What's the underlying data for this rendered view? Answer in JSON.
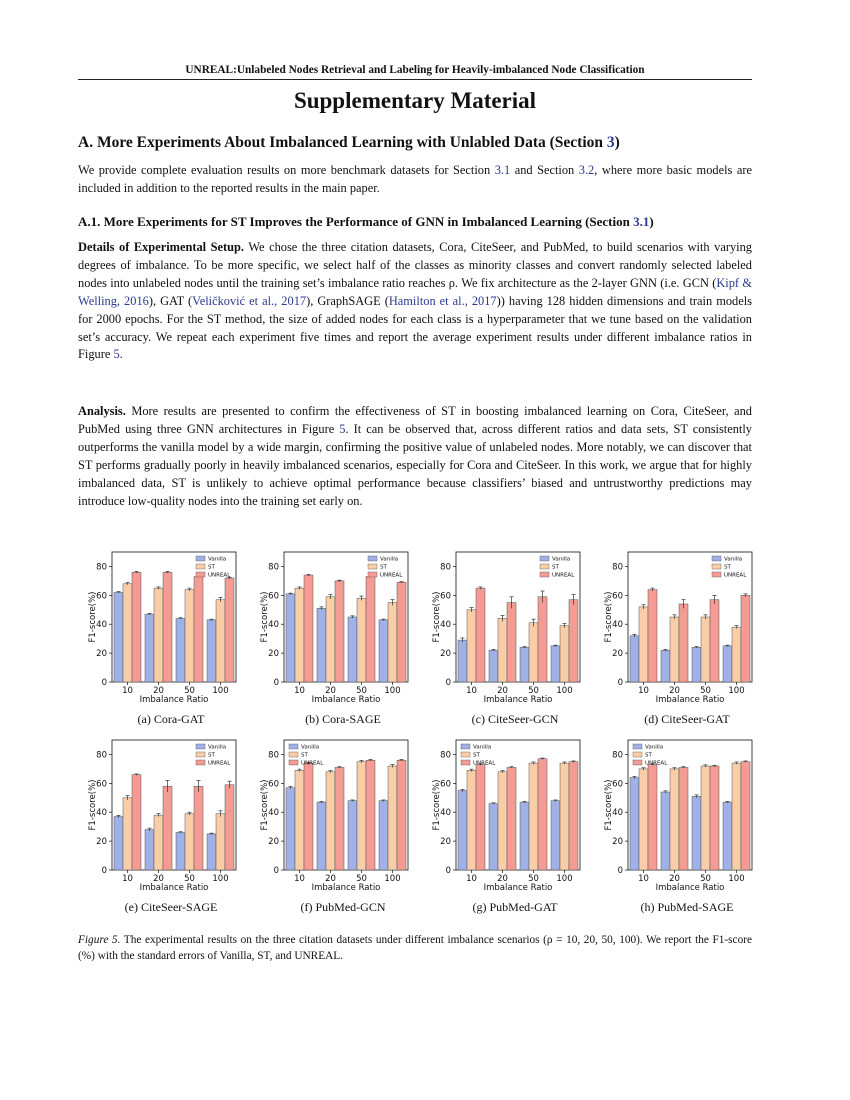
{
  "header": {
    "running_title": "UNREAL:Unlabeled Nodes Retrieval and Labeling for Heavily-imbalanced Node Classification"
  },
  "title": "Supplementary Material",
  "section_a": {
    "title_prefix": "A. More Experiments About Imbalanced Learning with Unlabled Data (Section ",
    "title_ref": "3",
    "title_suffix": ")",
    "p1_a": "We provide complete evaluation results on more benchmark datasets for Section ",
    "p1_ref1": "3.1",
    "p1_b": " and Section ",
    "p1_ref2": "3.2",
    "p1_c": ", where more basic models are included in addition to the reported results in the main paper."
  },
  "subsection_a1": {
    "title_prefix": "A.1. More Experiments for ST Improves the Performance of GNN in Imbalanced Learning (Section ",
    "title_ref": "3.1",
    "title_suffix": ")",
    "setup_heading": "Details of Experimental Setup.",
    "setup_a": " We chose the three citation datasets, Cora, CiteSeer, and PubMed, to build scenarios with varying degrees of imbalance. To be more specific, we select half of the classes as minority classes and convert randomly selected labeled nodes into unlabeled nodes until the training set’s imbalance ratio reaches ρ. We fix architecture as the 2-layer GNN (i.e. GCN (",
    "cite_kipf": "Kipf & Welling, 2016",
    "setup_b": "), GAT (",
    "cite_velickovic": "Veličković et al., 2017",
    "setup_c": "), GraphSAGE (",
    "cite_hamilton": "Hamilton et al., 2017",
    "setup_d": ")) having 128 hidden dimensions and train models for 2000 epochs. For the ST method, the size of added nodes for each class is a hyperparameter that we tune based on the validation set’s accuracy. We repeat each experiment five times and report the average experiment results under different imbalance ratios in Figure ",
    "setup_fig_ref": "5",
    "setup_e": ".",
    "analysis_heading": "Analysis.",
    "analysis_a": " More results are presented to confirm the effectiveness of ST in boosting imbalanced learning on Cora, CiteSeer, and PubMed using three GNN architectures in Figure ",
    "analysis_fig_ref": "5",
    "analysis_b": ". It can be observed that, across different ratios and data sets, ST consistently outperforms the vanilla model by a wide margin, confirming the positive value of unlabeled nodes. More notably, we can discover that ST performs gradually poorly in heavily imbalanced scenarios, especially for Cora and CiteSeer. In this work, we argue that for highly imbalanced data, ST is unlikely to achieve optimal performance because classifiers’ biased and untrustworthy predictions may introduce low-quality nodes into the training set early on."
  },
  "figure": {
    "caption_label": "Figure 5.",
    "caption_text": " The experimental results on the three citation datasets under different imbalance scenarios (ρ = 10, 20, 50, 100). We report the F1-score (%) with the standard errors of Vanilla, ST, and UNREAL.",
    "colors": {
      "Vanilla": "#9fb1e6",
      "ST": "#f8cda8",
      "UNREAL": "#f49b93"
    }
  },
  "chart_data": [
    {
      "type": "bar",
      "caption": "(a) Cora-GAT",
      "categories": [
        "10",
        "20",
        "50",
        "100"
      ],
      "xlabel": "Imbalance Ratio",
      "ylabel": "F1-score(%)",
      "ylim": [
        0,
        90
      ],
      "yticks": [
        0,
        20,
        40,
        60,
        80
      ],
      "legend_position": "top-right",
      "series": [
        {
          "name": "Vanilla",
          "values": [
            62,
            47,
            44,
            43
          ],
          "errors": [
            0.6,
            0.5,
            0.5,
            0.5
          ]
        },
        {
          "name": "ST",
          "values": [
            68,
            65,
            64,
            57
          ],
          "errors": [
            0.8,
            0.8,
            1.0,
            1.5
          ]
        },
        {
          "name": "UNREAL",
          "values": [
            76,
            76,
            73,
            72
          ],
          "errors": [
            0.5,
            0.5,
            0.5,
            0.5
          ]
        }
      ]
    },
    {
      "type": "bar",
      "caption": "(b) Cora-SAGE",
      "categories": [
        "10",
        "20",
        "50",
        "100"
      ],
      "xlabel": "Imbalance Ratio",
      "ylabel": "F1-score(%)",
      "ylim": [
        0,
        90
      ],
      "yticks": [
        0,
        20,
        40,
        60,
        80
      ],
      "legend_position": "top-right",
      "series": [
        {
          "name": "Vanilla",
          "values": [
            61,
            51,
            45,
            43
          ],
          "errors": [
            0.5,
            1.0,
            0.8,
            0.5
          ]
        },
        {
          "name": "ST",
          "values": [
            65,
            59,
            58,
            55
          ],
          "errors": [
            0.8,
            1.5,
            1.5,
            2.0
          ]
        },
        {
          "name": "UNREAL",
          "values": [
            74,
            70,
            73,
            69
          ],
          "errors": [
            0.5,
            0.5,
            0.5,
            0.5
          ]
        }
      ]
    },
    {
      "type": "bar",
      "caption": "(c) CiteSeer-GCN",
      "categories": [
        "10",
        "20",
        "50",
        "100"
      ],
      "xlabel": "Imbalance Ratio",
      "ylabel": "F1-score(%)",
      "ylim": [
        0,
        90
      ],
      "yticks": [
        0,
        20,
        40,
        60,
        80
      ],
      "legend_position": "top-right",
      "series": [
        {
          "name": "Vanilla",
          "values": [
            29,
            22,
            24,
            25
          ],
          "errors": [
            1.5,
            0.5,
            0.5,
            0.5
          ]
        },
        {
          "name": "ST",
          "values": [
            50,
            44,
            41,
            39
          ],
          "errors": [
            1.5,
            2.0,
            2.5,
            1.5
          ]
        },
        {
          "name": "UNREAL",
          "values": [
            65,
            55,
            59,
            57
          ],
          "errors": [
            0.8,
            4.0,
            4.0,
            3.5
          ]
        }
      ]
    },
    {
      "type": "bar",
      "caption": "(d) CiteSeer-GAT",
      "categories": [
        "10",
        "20",
        "50",
        "100"
      ],
      "xlabel": "Imbalance Ratio",
      "ylabel": "F1-score(%)",
      "ylim": [
        0,
        90
      ],
      "yticks": [
        0,
        20,
        40,
        60,
        80
      ],
      "legend_position": "top-right",
      "series": [
        {
          "name": "Vanilla",
          "values": [
            32,
            22,
            24,
            25
          ],
          "errors": [
            1.0,
            0.5,
            0.5,
            0.5
          ]
        },
        {
          "name": "ST",
          "values": [
            52,
            45,
            45,
            38
          ],
          "errors": [
            1.5,
            1.5,
            1.5,
            1.0
          ]
        },
        {
          "name": "UNREAL",
          "values": [
            64,
            54,
            57,
            60
          ],
          "errors": [
            1.0,
            3.0,
            3.0,
            1.0
          ]
        }
      ]
    },
    {
      "type": "bar",
      "caption": "(e) CiteSeer-SAGE",
      "categories": [
        "10",
        "20",
        "50",
        "100"
      ],
      "xlabel": "Imbalance Ratio",
      "ylabel": "F1-score(%)",
      "ylim": [
        0,
        90
      ],
      "yticks": [
        0,
        20,
        40,
        60,
        80
      ],
      "legend_position": "top-right",
      "series": [
        {
          "name": "Vanilla",
          "values": [
            37,
            28,
            26,
            25
          ],
          "errors": [
            0.8,
            1.0,
            0.5,
            0.5
          ]
        },
        {
          "name": "ST",
          "values": [
            50,
            38,
            39,
            39
          ],
          "errors": [
            1.5,
            1.0,
            1.0,
            2.0
          ]
        },
        {
          "name": "UNREAL",
          "values": [
            66,
            58,
            58,
            59
          ],
          "errors": [
            0.5,
            4.0,
            4.0,
            2.5
          ]
        }
      ]
    },
    {
      "type": "bar",
      "caption": "(f) PubMed-GCN",
      "categories": [
        "10",
        "20",
        "50",
        "100"
      ],
      "xlabel": "Imbalance Ratio",
      "ylabel": "F1-score(%)",
      "ylim": [
        0,
        90
      ],
      "yticks": [
        0,
        20,
        40,
        60,
        80
      ],
      "legend_position": "top-left",
      "series": [
        {
          "name": "Vanilla",
          "values": [
            57,
            47,
            48,
            48
          ],
          "errors": [
            0.8,
            0.5,
            0.5,
            0.5
          ]
        },
        {
          "name": "ST",
          "values": [
            69,
            68,
            75,
            72
          ],
          "errors": [
            0.8,
            0.8,
            0.8,
            1.0
          ]
        },
        {
          "name": "UNREAL",
          "values": [
            74,
            71,
            76,
            76
          ],
          "errors": [
            0.5,
            0.5,
            0.5,
            0.5
          ]
        }
      ]
    },
    {
      "type": "bar",
      "caption": "(g) PubMed-GAT",
      "categories": [
        "10",
        "20",
        "50",
        "100"
      ],
      "xlabel": "Imbalance Ratio",
      "ylabel": "F1-score(%)",
      "ylim": [
        0,
        90
      ],
      "yticks": [
        0,
        20,
        40,
        60,
        80
      ],
      "legend_position": "top-left",
      "series": [
        {
          "name": "Vanilla",
          "values": [
            55,
            46,
            47,
            48
          ],
          "errors": [
            0.8,
            0.5,
            0.5,
            0.5
          ]
        },
        {
          "name": "ST",
          "values": [
            69,
            68,
            74,
            74
          ],
          "errors": [
            0.8,
            0.8,
            0.8,
            0.8
          ]
        },
        {
          "name": "UNREAL",
          "values": [
            73,
            71,
            77,
            75
          ],
          "errors": [
            0.5,
            0.5,
            0.5,
            0.5
          ]
        }
      ]
    },
    {
      "type": "bar",
      "caption": "(h) PubMed-SAGE",
      "categories": [
        "10",
        "20",
        "50",
        "100"
      ],
      "xlabel": "Imbalance Ratio",
      "ylabel": "F1-score(%)",
      "ylim": [
        0,
        90
      ],
      "yticks": [
        0,
        20,
        40,
        60,
        80
      ],
      "legend_position": "top-left",
      "series": [
        {
          "name": "Vanilla",
          "values": [
            64,
            54,
            51,
            47
          ],
          "errors": [
            0.8,
            0.8,
            1.0,
            0.5
          ]
        },
        {
          "name": "ST",
          "values": [
            70,
            70,
            72,
            74
          ],
          "errors": [
            0.8,
            0.8,
            0.8,
            0.8
          ]
        },
        {
          "name": "UNREAL",
          "values": [
            73,
            71,
            72,
            75
          ],
          "errors": [
            0.5,
            0.5,
            0.5,
            0.5
          ]
        }
      ]
    }
  ]
}
